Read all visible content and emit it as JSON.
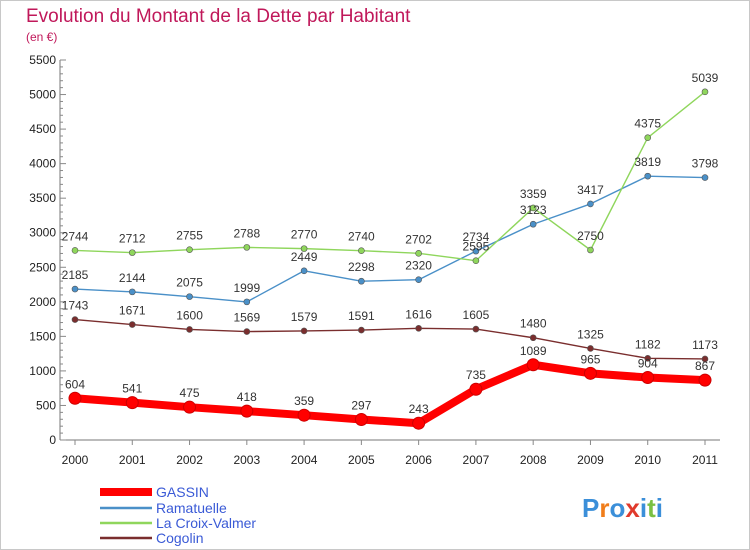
{
  "chart_data": {
    "type": "line",
    "title": "Evolution du Montant de la Dette par Habitant",
    "subtitle": "(en €)",
    "categories": [
      "2000",
      "2001",
      "2002",
      "2003",
      "2004",
      "2005",
      "2006",
      "2007",
      "2008",
      "2009",
      "2010",
      "2011"
    ],
    "ylim": [
      0,
      5500
    ],
    "yticks": [
      0,
      500,
      1000,
      1500,
      2000,
      2500,
      3000,
      3500,
      4000,
      4500,
      5000,
      5500
    ],
    "grid": false,
    "legend_position": "bottom-left",
    "series": [
      {
        "name": "GASSIN",
        "color": "#ff0000",
        "values": [
          604,
          541,
          475,
          418,
          359,
          297,
          243,
          735,
          1089,
          965,
          904,
          867
        ]
      },
      {
        "name": "Ramatuelle",
        "color": "#4a90c8",
        "values": [
          2185,
          2144,
          2075,
          1999,
          2449,
          2298,
          2320,
          2734,
          3123,
          3417,
          3819,
          3798
        ]
      },
      {
        "name": "La Croix-Valmer",
        "color": "#8fd65c",
        "values": [
          2744,
          2712,
          2755,
          2788,
          2770,
          2740,
          2702,
          2595,
          3359,
          2750,
          4375,
          5039
        ]
      },
      {
        "name": "Cogolin",
        "color": "#7a2e2e",
        "values": [
          1743,
          1671,
          1600,
          1569,
          1579,
          1591,
          1616,
          1605,
          1480,
          1325,
          1182,
          1173
        ]
      }
    ]
  },
  "logo": {
    "text": "Proxiti"
  }
}
